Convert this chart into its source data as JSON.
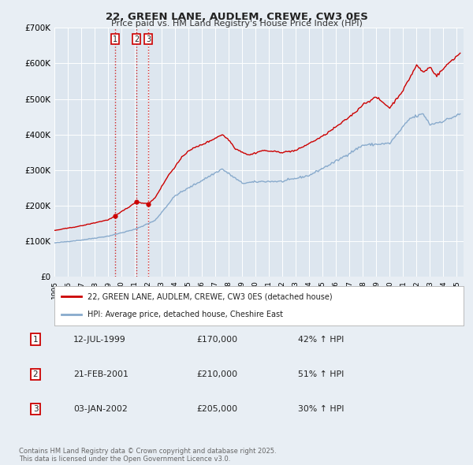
{
  "title": "22, GREEN LANE, AUDLEM, CREWE, CW3 0ES",
  "subtitle": "Price paid vs. HM Land Registry's House Price Index (HPI)",
  "legend_label_red": "22, GREEN LANE, AUDLEM, CREWE, CW3 0ES (detached house)",
  "legend_label_blue": "HPI: Average price, detached house, Cheshire East",
  "footer": "Contains HM Land Registry data © Crown copyright and database right 2025.\nThis data is licensed under the Open Government Licence v3.0.",
  "transactions": [
    {
      "num": 1,
      "date": "12-JUL-1999",
      "date_x": 1999.53,
      "price": 170000,
      "label": "42% ↑ HPI"
    },
    {
      "num": 2,
      "date": "21-FEB-2001",
      "date_x": 2001.13,
      "price": 210000,
      "label": "51% ↑ HPI"
    },
    {
      "num": 3,
      "date": "03-JAN-2002",
      "date_x": 2002.01,
      "price": 205000,
      "label": "30% ↑ HPI"
    }
  ],
  "vline_color": "#cc0000",
  "red_line_color": "#cc0000",
  "blue_line_color": "#88aacc",
  "background_color": "#e8eef4",
  "plot_bg_color": "#dde6ef",
  "grid_color": "#ffffff",
  "ylim": [
    0,
    700000
  ],
  "xlim_start": 1995.0,
  "xlim_end": 2025.5,
  "yticks": [
    0,
    100000,
    200000,
    300000,
    400000,
    500000,
    600000,
    700000
  ],
  "ytick_labels": [
    "£0",
    "£100K",
    "£200K",
    "£300K",
    "£400K",
    "£500K",
    "£600K",
    "£700K"
  ],
  "xtick_years": [
    1995,
    1996,
    1997,
    1998,
    1999,
    2000,
    2001,
    2002,
    2003,
    2004,
    2005,
    2006,
    2007,
    2008,
    2009,
    2010,
    2011,
    2012,
    2013,
    2014,
    2015,
    2016,
    2017,
    2018,
    2019,
    2020,
    2021,
    2022,
    2023,
    2024,
    2025
  ]
}
